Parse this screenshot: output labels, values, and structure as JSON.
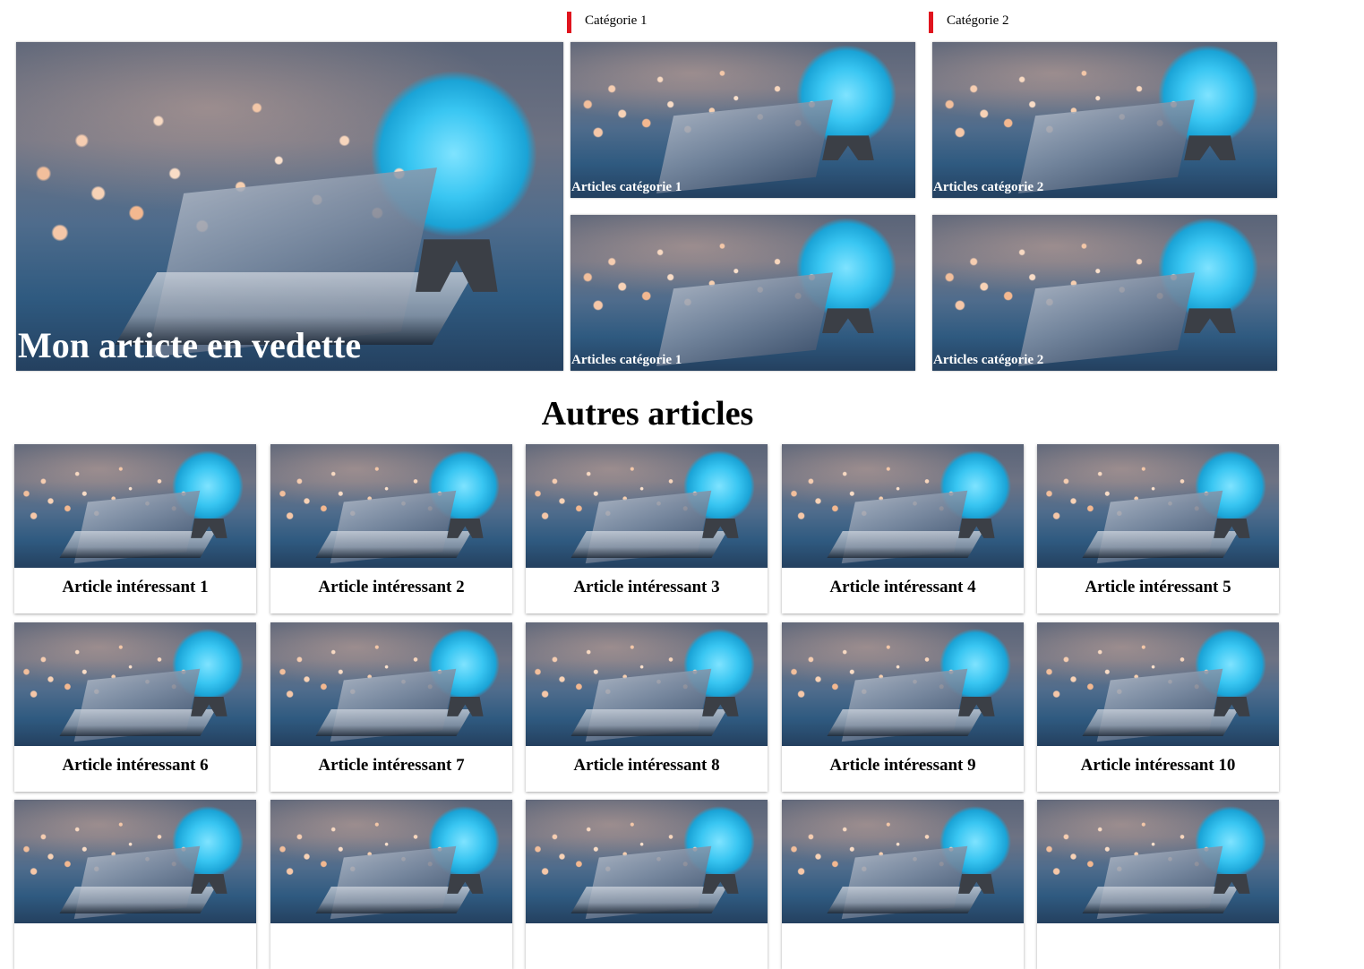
{
  "categories": [
    {
      "heading": "Catégorie 1",
      "cards": [
        "Articles catégorie 1",
        "Articles catégorie 1"
      ]
    },
    {
      "heading": "Catégorie 2",
      "cards": [
        "Articles catégorie 2",
        "Articles catégorie 2"
      ]
    }
  ],
  "featured": {
    "title": "Mon articte en vedette"
  },
  "section": {
    "title": "Autres articles"
  },
  "articles": [
    "Article intéressant 1",
    "Article intéressant 2",
    "Article intéressant 3",
    "Article intéressant 4",
    "Article intéressant 5",
    "Article intéressant 6",
    "Article intéressant 7",
    "Article intéressant 8",
    "Article intéressant 9",
    "Article intéressant 10",
    "",
    "",
    "",
    "",
    ""
  ],
  "colors": {
    "accent": "#e0141e"
  }
}
